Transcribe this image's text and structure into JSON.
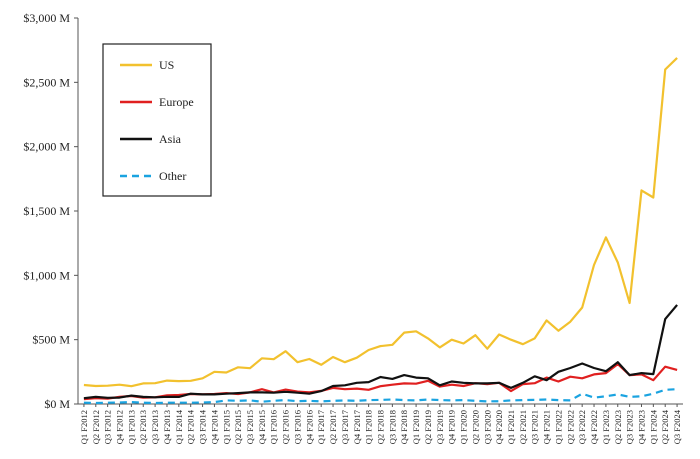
{
  "chart_data": {
    "type": "line",
    "title": "",
    "xlabel": "",
    "ylabel": "",
    "ylim": [
      0,
      3000
    ],
    "yticks": [
      0,
      500,
      1000,
      1500,
      2000,
      2500,
      3000
    ],
    "ytick_labels": [
      "$0 M",
      "$500 M",
      "$1,000 M",
      "$1,500 M",
      "$2,000 M",
      "$2,500 M",
      "$3,000 M"
    ],
    "grid": false,
    "legend_position": "top-left",
    "categories": [
      "Q1 F2012",
      "Q2 F2012",
      "Q3 F2012",
      "Q4 F2012",
      "Q1 F2013",
      "Q2 F2013",
      "Q3 F2013",
      "Q4 F2013",
      "Q1 F2014",
      "Q2 F2014",
      "Q3 F2014",
      "Q4 F2014",
      "Q1 F2015",
      "Q2 F2015",
      "Q3 F2015",
      "Q4 F2015",
      "Q1 F2016",
      "Q2 F2016",
      "Q3 F2016",
      "Q4 F2016",
      "Q1 F2017",
      "Q2 F2017",
      "Q3 F2017",
      "Q4 F2017",
      "Q1 F2018",
      "Q2 F2018",
      "Q3 F2018",
      "Q4 F2018",
      "Q1 F2019",
      "Q2 F2019",
      "Q3 F2019",
      "Q4 F2019",
      "Q1 F2020",
      "Q2 F2020",
      "Q3 F2020",
      "Q4 F2020",
      "Q1 F2021",
      "Q2 F2021",
      "Q3 F2021",
      "Q4 F2021",
      "Q1 F2022",
      "Q2 F2022",
      "Q3 F2022",
      "Q4 F2022",
      "Q1 F2023",
      "Q2 F2023",
      "Q3 F2023",
      "Q4 F2023",
      "Q1 F2024",
      "Q2 F2024",
      "Q3 F2024"
    ],
    "series": [
      {
        "name": "US",
        "color": "#f2c12e",
        "dash": "solid",
        "values": [
          148,
          140,
          142,
          150,
          138,
          160,
          162,
          182,
          178,
          180,
          200,
          250,
          245,
          285,
          278,
          355,
          348,
          410,
          325,
          350,
          305,
          365,
          325,
          360,
          420,
          450,
          460,
          555,
          565,
          510,
          440,
          500,
          470,
          535,
          430,
          540,
          500,
          465,
          510,
          650,
          570,
          640,
          750,
          1080,
          1295,
          1100,
          785,
          1660,
          1605,
          2600,
          2690
        ]
      },
      {
        "name": "Europe",
        "color": "#e02020",
        "dash": "solid",
        "values": [
          38,
          45,
          42,
          55,
          62,
          50,
          52,
          68,
          70,
          78,
          75,
          78,
          85,
          78,
          90,
          115,
          90,
          112,
          96,
          90,
          102,
          125,
          115,
          120,
          110,
          138,
          150,
          160,
          158,
          180,
          135,
          150,
          140,
          162,
          155,
          165,
          100,
          155,
          162,
          205,
          175,
          212,
          200,
          230,
          240,
          310,
          225,
          230,
          185,
          290,
          265
        ]
      },
      {
        "name": "Asia",
        "color": "#111111",
        "dash": "solid",
        "values": [
          45,
          55,
          48,
          50,
          65,
          55,
          52,
          56,
          55,
          80,
          75,
          75,
          80,
          85,
          90,
          90,
          88,
          95,
          88,
          80,
          100,
          140,
          145,
          165,
          170,
          210,
          195,
          225,
          205,
          200,
          145,
          175,
          165,
          160,
          160,
          165,
          125,
          165,
          215,
          185,
          250,
          280,
          315,
          280,
          255,
          325,
          225,
          240,
          232,
          660,
          770
        ]
      },
      {
        "name": "Other",
        "color": "#1aa3e0",
        "dash": "dashed",
        "values": [
          10,
          8,
          10,
          12,
          15,
          10,
          8,
          10,
          10,
          10,
          12,
          15,
          28,
          25,
          28,
          18,
          25,
          30,
          22,
          25,
          20,
          25,
          28,
          25,
          30,
          32,
          35,
          30,
          28,
          35,
          30,
          28,
          30,
          25,
          20,
          22,
          28,
          30,
          32,
          35,
          30,
          28,
          80,
          50,
          60,
          75,
          55,
          60,
          80,
          110,
          115
        ]
      }
    ]
  }
}
